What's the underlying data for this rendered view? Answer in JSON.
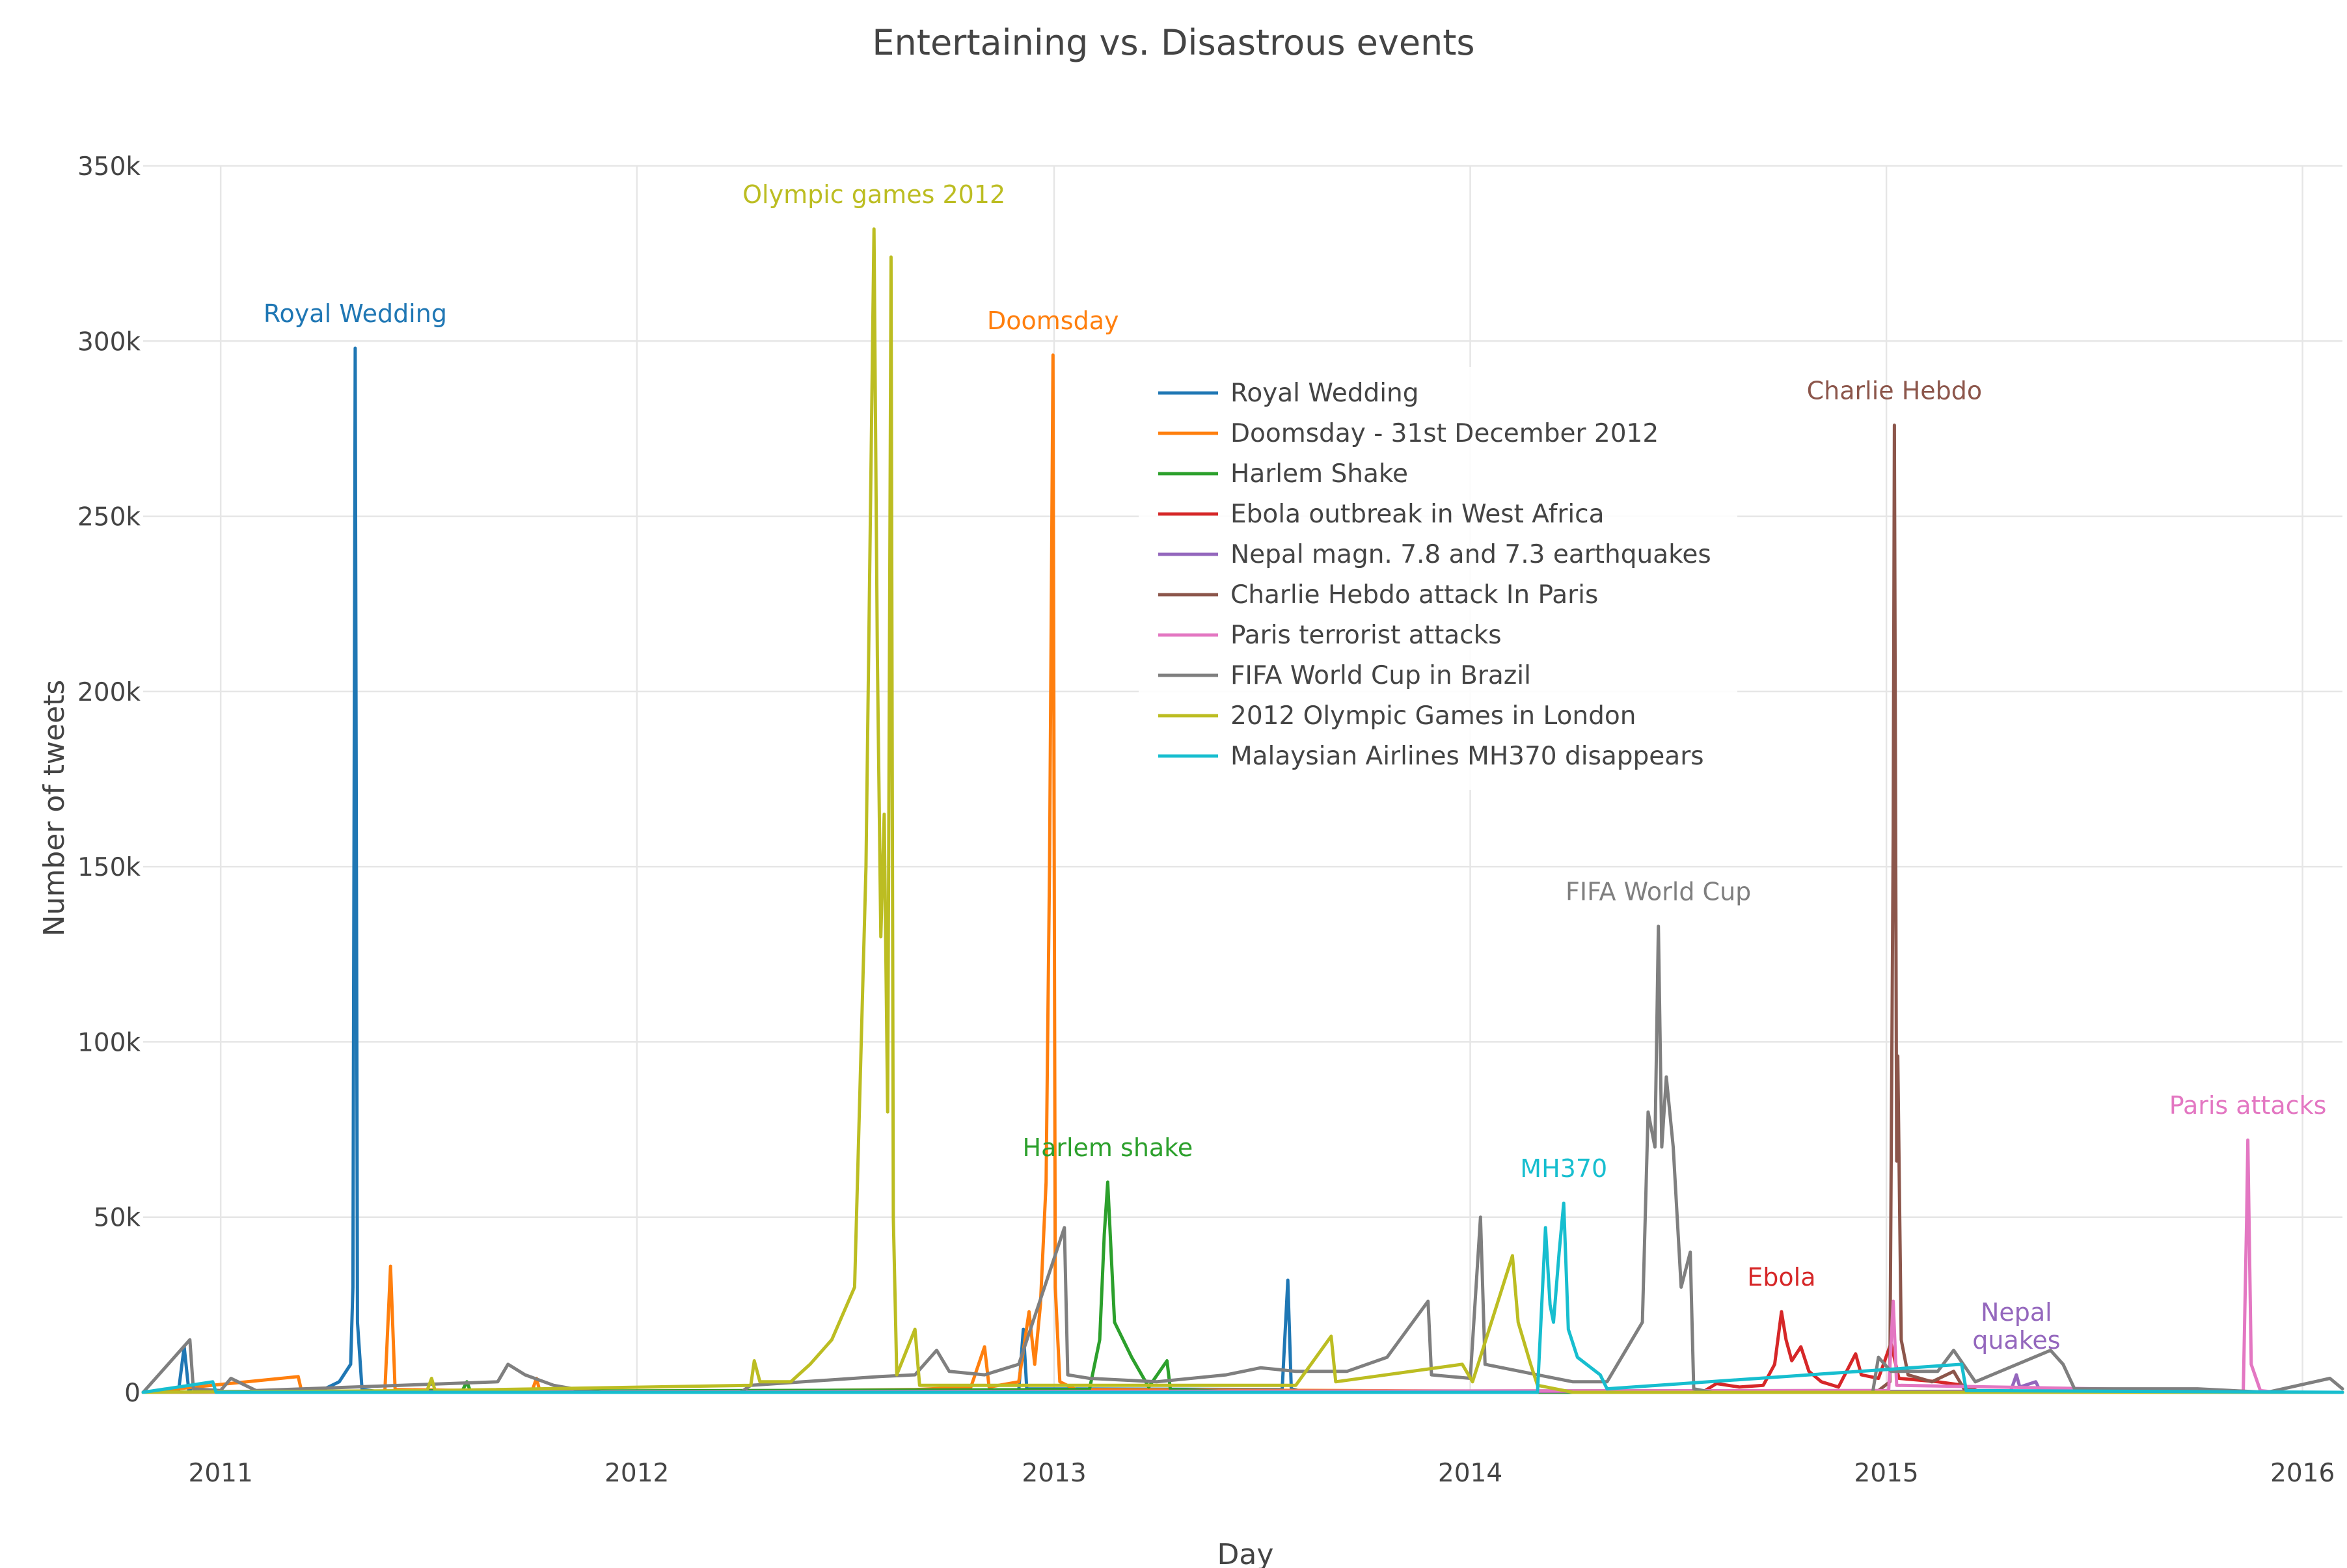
{
  "chart_data": {
    "type": "line",
    "title": "Entertaining vs. Disastrous events",
    "xlabel": "Day",
    "ylabel": "Number of tweets",
    "x_range": [
      "2010-10-25",
      "2016-02-05"
    ],
    "ylim": [
      0,
      350000
    ],
    "y_ticks": [
      0,
      50000,
      100000,
      150000,
      200000,
      250000,
      300000,
      350000
    ],
    "y_tick_labels": [
      "0",
      "50k",
      "100k",
      "150k",
      "200k",
      "250k",
      "300k",
      "350k"
    ],
    "x_ticks": [
      "2011-01-01",
      "2012-01-01",
      "2013-01-01",
      "2014-01-01",
      "2015-01-01",
      "2016-01-01"
    ],
    "x_tick_labels": [
      "2011",
      "2012",
      "2013",
      "2014",
      "2015",
      "2016"
    ],
    "grid": true,
    "legend_position": "inside, upper center",
    "series": [
      {
        "name": "Royal Wedding",
        "color": "#1f77b4",
        "points": [
          [
            "2010-10-25",
            0
          ],
          [
            "2010-11-25",
            300
          ],
          [
            "2010-11-30",
            13000
          ],
          [
            "2010-12-04",
            500
          ],
          [
            "2010-12-10",
            2000
          ],
          [
            "2010-12-15",
            200
          ],
          [
            "2011-02-01",
            300
          ],
          [
            "2011-04-01",
            800
          ],
          [
            "2011-04-15",
            3000
          ],
          [
            "2011-04-25",
            8000
          ],
          [
            "2011-04-27",
            30000
          ],
          [
            "2011-04-29",
            298000
          ],
          [
            "2011-05-01",
            20000
          ],
          [
            "2011-05-05",
            800
          ],
          [
            "2011-05-20",
            200
          ],
          [
            "2012-12-01",
            500
          ],
          [
            "2012-12-05",
            18000
          ],
          [
            "2012-12-08",
            1000
          ],
          [
            "2013-07-20",
            800
          ],
          [
            "2013-07-25",
            32000
          ],
          [
            "2013-07-28",
            1000
          ],
          [
            "2013-08-10",
            0
          ],
          [
            "2016-02-05",
            0
          ]
        ]
      },
      {
        "name": "Doomsday - 31st December 2012",
        "color": "#ff7f0e",
        "points": [
          [
            "2010-10-25",
            0
          ],
          [
            "2011-03-10",
            4500
          ],
          [
            "2011-03-13",
            200
          ],
          [
            "2011-05-25",
            300
          ],
          [
            "2011-05-30",
            36000
          ],
          [
            "2011-06-03",
            800
          ],
          [
            "2011-10-01",
            300
          ],
          [
            "2011-10-05",
            4000
          ],
          [
            "2011-10-08",
            200
          ],
          [
            "2012-06-01",
            500
          ],
          [
            "2012-09-01",
            800
          ],
          [
            "2012-10-20",
            1500
          ],
          [
            "2012-11-01",
            13000
          ],
          [
            "2012-11-05",
            1500
          ],
          [
            "2012-12-01",
            3000
          ],
          [
            "2012-12-10",
            23000
          ],
          [
            "2012-12-15",
            8000
          ],
          [
            "2012-12-20",
            25000
          ],
          [
            "2012-12-25",
            60000
          ],
          [
            "2012-12-28",
            150000
          ],
          [
            "2012-12-31",
            296000
          ],
          [
            "2013-01-02",
            30000
          ],
          [
            "2013-01-06",
            3000
          ],
          [
            "2013-01-20",
            800
          ],
          [
            "2014-03-01",
            300
          ],
          [
            "2014-04-01",
            0
          ],
          [
            "2016-02-05",
            0
          ]
        ]
      },
      {
        "name": "Harlem Shake",
        "color": "#2ca02c",
        "points": [
          [
            "2010-10-25",
            0
          ],
          [
            "2011-08-01",
            500
          ],
          [
            "2011-08-05",
            3000
          ],
          [
            "2011-08-08",
            300
          ],
          [
            "2013-02-01",
            800
          ],
          [
            "2013-02-10",
            15000
          ],
          [
            "2013-02-14",
            45000
          ],
          [
            "2013-02-17",
            60000
          ],
          [
            "2013-02-20",
            40000
          ],
          [
            "2013-02-23",
            20000
          ],
          [
            "2013-03-10",
            10000
          ],
          [
            "2013-03-25",
            1500
          ],
          [
            "2013-04-10",
            9000
          ],
          [
            "2013-04-13",
            800
          ],
          [
            "2013-06-01",
            300
          ],
          [
            "2013-08-01",
            0
          ],
          [
            "2016-02-05",
            0
          ]
        ]
      },
      {
        "name": "Ebola outbreak in West Africa",
        "color": "#d62728",
        "points": [
          [
            "2010-10-25",
            0
          ],
          [
            "2014-07-25",
            300
          ],
          [
            "2014-08-05",
            2500
          ],
          [
            "2014-08-25",
            1500
          ],
          [
            "2014-09-15",
            2000
          ],
          [
            "2014-09-25",
            8000
          ],
          [
            "2014-10-01",
            23000
          ],
          [
            "2014-10-05",
            15000
          ],
          [
            "2014-10-10",
            9000
          ],
          [
            "2014-10-18",
            13000
          ],
          [
            "2014-10-25",
            6000
          ],
          [
            "2014-11-05",
            3000
          ],
          [
            "2014-11-20",
            1500
          ],
          [
            "2014-12-05",
            11000
          ],
          [
            "2014-12-10",
            5000
          ],
          [
            "2014-12-25",
            4000
          ],
          [
            "2015-01-05",
            14000
          ],
          [
            "2015-01-12",
            4000
          ],
          [
            "2015-02-15",
            3000
          ],
          [
            "2015-03-10",
            2000
          ],
          [
            "2015-03-25",
            0
          ],
          [
            "2016-02-05",
            0
          ]
        ]
      },
      {
        "name": "Nepal magn. 7.8 and 7.3 earthquakes",
        "color": "#9467bd",
        "points": [
          [
            "2010-10-25",
            0
          ],
          [
            "2015-04-20",
            300
          ],
          [
            "2015-04-25",
            5000
          ],
          [
            "2015-04-28",
            1500
          ],
          [
            "2015-05-12",
            3000
          ],
          [
            "2015-05-16",
            300
          ],
          [
            "2015-06-01",
            0
          ],
          [
            "2016-02-05",
            0
          ]
        ]
      },
      {
        "name": "Charlie Hebdo attack In Paris",
        "color": "#8c564b",
        "points": [
          [
            "2010-10-25",
            0
          ],
          [
            "2014-12-25",
            500
          ],
          [
            "2015-01-04",
            3000
          ],
          [
            "2015-01-07",
            160000
          ],
          [
            "2015-01-08",
            276000
          ],
          [
            "2015-01-10",
            66000
          ],
          [
            "2015-01-11",
            96000
          ],
          [
            "2015-01-14",
            15000
          ],
          [
            "2015-01-20",
            5000
          ],
          [
            "2015-02-10",
            3000
          ],
          [
            "2015-03-01",
            6000
          ],
          [
            "2015-03-10",
            1000
          ],
          [
            "2015-04-01",
            0
          ],
          [
            "2016-02-05",
            0
          ]
        ]
      },
      {
        "name": "Paris terrorist attacks",
        "color": "#e377c2",
        "points": [
          [
            "2010-10-25",
            0
          ],
          [
            "2015-01-03",
            500
          ],
          [
            "2015-01-07",
            26000
          ],
          [
            "2015-01-10",
            2000
          ],
          [
            "2015-11-10",
            300
          ],
          [
            "2015-11-13",
            50000
          ],
          [
            "2015-11-14",
            72000
          ],
          [
            "2015-11-17",
            8000
          ],
          [
            "2015-11-25",
            500
          ],
          [
            "2015-12-10",
            0
          ],
          [
            "2016-02-05",
            0
          ]
        ]
      },
      {
        "name": "FIFA World Cup in Brazil",
        "color": "#7f7f7f",
        "points": [
          [
            "2010-10-25",
            0
          ],
          [
            "2010-12-05",
            15000
          ],
          [
            "2010-12-08",
            1000
          ],
          [
            "2011-01-01",
            500
          ],
          [
            "2011-01-10",
            4000
          ],
          [
            "2011-02-01",
            500
          ],
          [
            "2011-09-01",
            3000
          ],
          [
            "2011-09-10",
            8000
          ],
          [
            "2011-09-25",
            5000
          ],
          [
            "2011-10-20",
            2000
          ],
          [
            "2011-11-15",
            500
          ],
          [
            "2011-12-01",
            0
          ],
          [
            "2012-04-01",
            0
          ],
          [
            "2012-04-10",
            2000
          ],
          [
            "2012-08-01",
            4500
          ],
          [
            "2012-09-01",
            5000
          ],
          [
            "2012-09-20",
            12000
          ],
          [
            "2012-10-01",
            6000
          ],
          [
            "2012-11-01",
            5000
          ],
          [
            "2012-12-01",
            8000
          ],
          [
            "2013-01-10",
            47000
          ],
          [
            "2013-01-13",
            5000
          ],
          [
            "2013-02-01",
            4000
          ],
          [
            "2013-04-01",
            3000
          ],
          [
            "2013-06-01",
            5000
          ],
          [
            "2013-07-01",
            7000
          ],
          [
            "2013-08-01",
            6000
          ],
          [
            "2013-09-15",
            6000
          ],
          [
            "2013-10-20",
            10000
          ],
          [
            "2013-11-25",
            26000
          ],
          [
            "2013-11-28",
            5000
          ],
          [
            "2014-01-01",
            4000
          ],
          [
            "2014-01-10",
            50000
          ],
          [
            "2014-01-14",
            8000
          ],
          [
            "2014-03-01",
            5000
          ],
          [
            "2014-04-01",
            3000
          ],
          [
            "2014-05-01",
            3000
          ],
          [
            "2014-06-01",
            20000
          ],
          [
            "2014-06-06",
            80000
          ],
          [
            "2014-06-12",
            70000
          ],
          [
            "2014-06-15",
            133000
          ],
          [
            "2014-06-18",
            70000
          ],
          [
            "2014-06-22",
            90000
          ],
          [
            "2014-06-28",
            70000
          ],
          [
            "2014-07-05",
            30000
          ],
          [
            "2014-07-13",
            40000
          ],
          [
            "2014-07-16",
            1000
          ],
          [
            "2014-08-01",
            0
          ],
          [
            "2014-12-20",
            0
          ],
          [
            "2014-12-25",
            10000
          ],
          [
            "2015-01-05",
            6000
          ],
          [
            "2015-02-15",
            6000
          ],
          [
            "2015-03-01",
            12000
          ],
          [
            "2015-03-20",
            3000
          ],
          [
            "2015-05-25",
            12000
          ],
          [
            "2015-06-05",
            8000
          ],
          [
            "2015-06-15",
            1000
          ],
          [
            "2015-10-01",
            1000
          ],
          [
            "2015-12-01",
            0
          ],
          [
            "2016-01-25",
            4000
          ],
          [
            "2016-02-05",
            1000
          ]
        ]
      },
      {
        "name": "2012 Olympic Games in London",
        "color": "#bcbd22",
        "points": [
          [
            "2010-10-25",
            0
          ],
          [
            "2011-07-01",
            500
          ],
          [
            "2011-07-05",
            4000
          ],
          [
            "2011-07-08",
            500
          ],
          [
            "2012-04-10",
            2000
          ],
          [
            "2012-04-13",
            9000
          ],
          [
            "2012-04-18",
            3000
          ],
          [
            "2012-05-15",
            3000
          ],
          [
            "2012-06-01",
            8000
          ],
          [
            "2012-06-20",
            15000
          ],
          [
            "2012-07-10",
            30000
          ],
          [
            "2012-07-20",
            150000
          ],
          [
            "2012-07-27",
            332000
          ],
          [
            "2012-07-30",
            210000
          ],
          [
            "2012-08-02",
            130000
          ],
          [
            "2012-08-05",
            165000
          ],
          [
            "2012-08-08",
            80000
          ],
          [
            "2012-08-11",
            324000
          ],
          [
            "2012-08-13",
            50000
          ],
          [
            "2012-08-16",
            5000
          ],
          [
            "2012-09-01",
            18000
          ],
          [
            "2012-09-05",
            2000
          ],
          [
            "2013-08-01",
            2000
          ],
          [
            "2013-09-01",
            16000
          ],
          [
            "2013-09-05",
            3000
          ],
          [
            "2013-12-25",
            8000
          ],
          [
            "2014-01-03",
            3000
          ],
          [
            "2014-02-07",
            39000
          ],
          [
            "2014-02-12",
            20000
          ],
          [
            "2014-02-23",
            8000
          ],
          [
            "2014-03-01",
            2000
          ],
          [
            "2014-04-01",
            0
          ],
          [
            "2016-02-05",
            0
          ]
        ]
      },
      {
        "name": "Malaysian Airlines MH370 disappears",
        "color": "#17becf",
        "points": [
          [
            "2010-10-25",
            0
          ],
          [
            "2010-12-25",
            3000
          ],
          [
            "2010-12-28",
            0
          ],
          [
            "2014-03-01",
            0
          ],
          [
            "2014-03-08",
            47000
          ],
          [
            "2014-03-12",
            25000
          ],
          [
            "2014-03-15",
            20000
          ],
          [
            "2014-03-20",
            40000
          ],
          [
            "2014-03-24",
            54000
          ],
          [
            "2014-03-28",
            18000
          ],
          [
            "2014-04-05",
            10000
          ],
          [
            "2014-04-25",
            5000
          ],
          [
            "2014-05-01",
            1000
          ],
          [
            "2015-03-08",
            8000
          ],
          [
            "2015-03-12",
            500
          ],
          [
            "2016-02-05",
            0
          ]
        ]
      }
    ],
    "annotations": [
      {
        "text": "Royal Wedding",
        "color": "#1f77b4",
        "x": "2011-04-29",
        "y": 298000
      },
      {
        "text": "Olympic games 2012",
        "color": "#bcbd22",
        "x": "2012-07-27",
        "y": 332000
      },
      {
        "text": "Doomsday",
        "color": "#ff7f0e",
        "x": "2012-12-31",
        "y": 296000
      },
      {
        "text": "Charlie Hebdo",
        "color": "#8c564b",
        "x": "2015-01-08",
        "y": 276000
      },
      {
        "text": "FIFA World Cup",
        "color": "#7f7f7f",
        "x": "2014-06-15",
        "y": 133000
      },
      {
        "text": "Harlem shake",
        "color": "#2ca02c",
        "x": "2013-02-17",
        "y": 60000
      },
      {
        "text": "MH370",
        "color": "#17becf",
        "x": "2014-03-24",
        "y": 54000
      },
      {
        "text": "Paris attacks",
        "color": "#e377c2",
        "x": "2015-11-14",
        "y": 72000
      },
      {
        "text": "Ebola",
        "color": "#d62728",
        "x": "2014-10-01",
        "y": 23000
      },
      {
        "text": "Nepal",
        "text2": "quakes",
        "color": "#9467bd",
        "x": "2015-04-25",
        "y": 5000
      }
    ]
  }
}
